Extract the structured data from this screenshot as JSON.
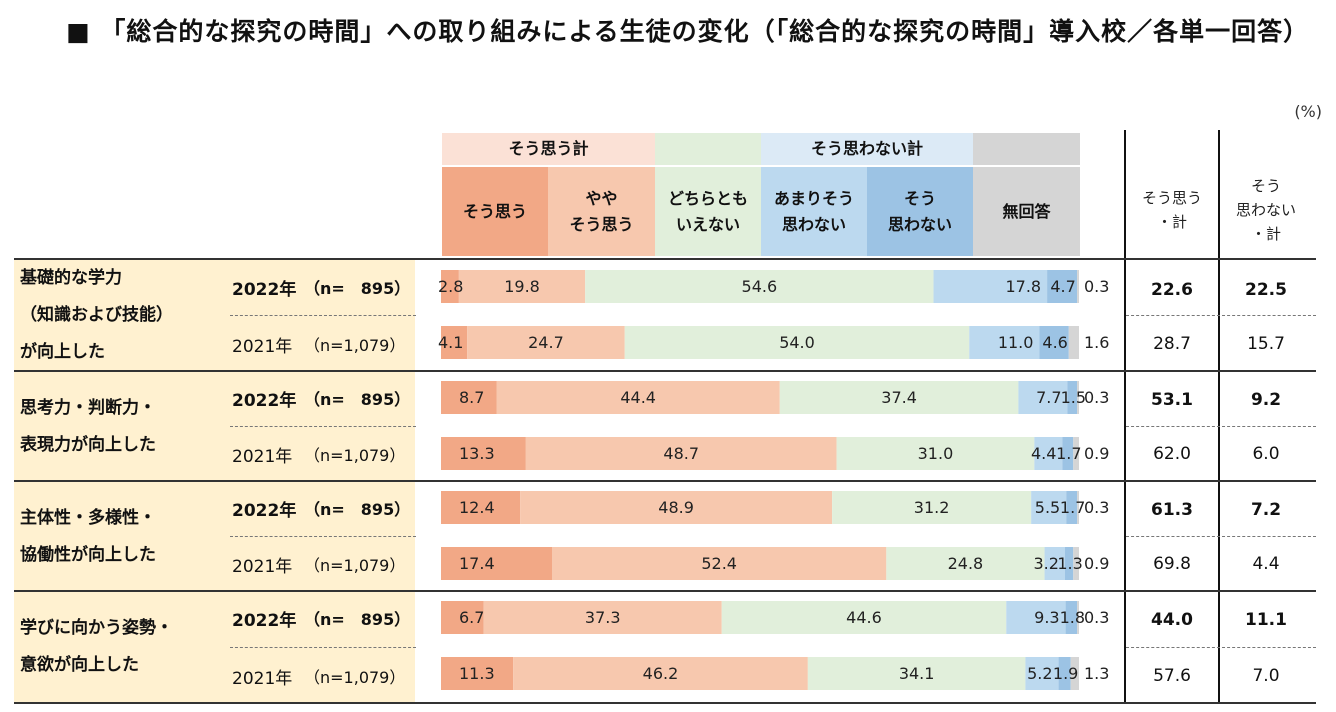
{
  "title": "■ 「総合的な探究の時間」への取り組みによる生徒の変化（「総合的な探究の時間」導入校／各単一回答）",
  "unit": "(%)",
  "colors": {
    "agree": "#f2a886",
    "somewhat_agree": "#f7c8ae",
    "neutral": "#e1efdb",
    "not_really": "#bcd9ef",
    "disagree": "#9cc3e4",
    "no_answer": "#d5d5d5",
    "group_agree": "#fbe1d6",
    "group_disagree": "#dceaf6",
    "question_bg": "#fff1d0"
  },
  "header": {
    "group_agree": "そう思う計",
    "group_disagree": "そう思わない計",
    "columns": [
      "そう思う",
      "やや\nそう思う",
      "どちらとも\nいえない",
      "あまりそう\n思わない",
      "そう\n思わない",
      "無回答"
    ],
    "total_agree": "そう思う\n・計",
    "total_disagree": "そう\n思わない\n・計"
  },
  "chart_data": {
    "type": "bar",
    "stacked": true,
    "orientation": "horizontal",
    "unit": "%",
    "xlim": [
      0,
      100
    ],
    "series_names": [
      "そう思う",
      "ややそう思う",
      "どちらともいえない",
      "あまりそう思わない",
      "そう思わない",
      "無回答"
    ],
    "rows": [
      {
        "question": "基礎的な学力\n（知識および技能）\nが向上した",
        "year": "2022年",
        "n": "（n=　895）",
        "bold": true,
        "values": [
          2.8,
          19.8,
          54.6,
          17.8,
          4.7,
          0.3
        ],
        "labels": [
          "2.8",
          "19.8",
          "54.6",
          "17.8",
          "4.7",
          "0.3"
        ],
        "total_agree": "22.6",
        "total_disagree": "22.5"
      },
      {
        "question": "",
        "year": "2021年",
        "n": "（n=1,079）",
        "bold": false,
        "values": [
          4.1,
          24.7,
          54.0,
          11.0,
          4.6,
          1.6
        ],
        "labels": [
          "4.1",
          "24.7",
          "54.0",
          "11.0",
          "4.6",
          "1.6"
        ],
        "total_agree": "28.7",
        "total_disagree": "15.7"
      },
      {
        "question": "思考力・判断力・\n表現力が向上した",
        "year": "2022年",
        "n": "（n=　895）",
        "bold": true,
        "values": [
          8.7,
          44.4,
          37.4,
          7.7,
          1.5,
          0.3
        ],
        "labels": [
          "8.7",
          "44.4",
          "37.4",
          "7.7",
          "1.5",
          "0.3"
        ],
        "total_agree": "53.1",
        "total_disagree": "9.2"
      },
      {
        "question": "",
        "year": "2021年",
        "n": "（n=1,079）",
        "bold": false,
        "values": [
          13.3,
          48.7,
          31.0,
          4.4,
          1.7,
          0.9
        ],
        "labels": [
          "13.3",
          "48.7",
          "31.0",
          "4.4",
          "1.7",
          "0.9"
        ],
        "total_agree": "62.0",
        "total_disagree": "6.0"
      },
      {
        "question": "主体性・多様性・\n協働性が向上した",
        "year": "2022年",
        "n": "（n=　895）",
        "bold": true,
        "values": [
          12.4,
          48.9,
          31.2,
          5.5,
          1.7,
          0.3
        ],
        "labels": [
          "12.4",
          "48.9",
          "31.2",
          "5.5",
          "1.7",
          "0.3"
        ],
        "total_agree": "61.3",
        "total_disagree": "7.2"
      },
      {
        "question": "",
        "year": "2021年",
        "n": "（n=1,079）",
        "bold": false,
        "values": [
          17.4,
          52.4,
          24.8,
          3.2,
          1.3,
          0.9
        ],
        "labels": [
          "17.4",
          "52.4",
          "24.8",
          "3.2",
          "1.3",
          "0.9"
        ],
        "total_agree": "69.8",
        "total_disagree": "4.4"
      },
      {
        "question": "学びに向かう姿勢・\n意欲が向上した",
        "year": "2022年",
        "n": "（n=　895）",
        "bold": true,
        "values": [
          6.7,
          37.3,
          44.6,
          9.3,
          1.8,
          0.3
        ],
        "labels": [
          "6.7",
          "37.3",
          "44.6",
          "9.3",
          "1.8",
          "0.3"
        ],
        "total_agree": "44.0",
        "total_disagree": "11.1"
      },
      {
        "question": "",
        "year": "2021年",
        "n": "（n=1,079）",
        "bold": false,
        "values": [
          11.3,
          46.2,
          34.1,
          5.2,
          1.9,
          1.3
        ],
        "labels": [
          "11.3",
          "46.2",
          "34.1",
          "5.2",
          "1.9",
          "1.3"
        ],
        "total_agree": "57.6",
        "total_disagree": "7.0"
      }
    ]
  }
}
